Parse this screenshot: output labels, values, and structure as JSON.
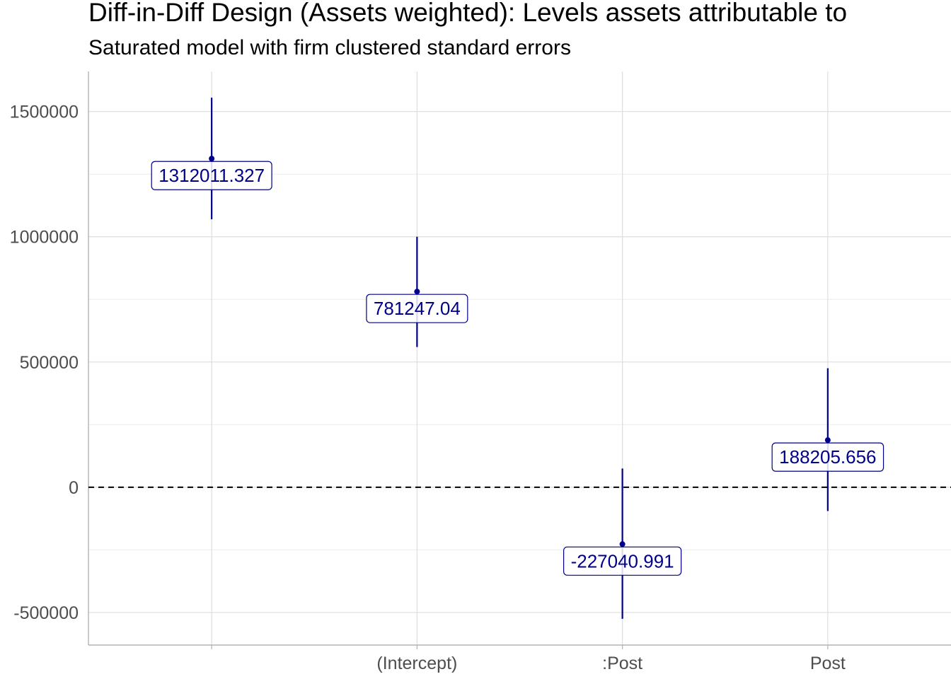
{
  "chart_data": {
    "type": "scatter",
    "title": "Diff-in-Diff Design (Assets weighted): Levels assets attributable to",
    "subtitle": "Saturated model with firm clustered standard errors",
    "xlabel": "",
    "ylabel": "",
    "categories": [
      "",
      "(Intercept)",
      ":Post",
      "Post"
    ],
    "series": [
      {
        "estimates": [
          1312011.327,
          781247.04,
          -227040.991,
          188205.656
        ],
        "ci_low": [
          1070000,
          560000,
          -525000,
          -95000
        ],
        "ci_high": [
          1555000,
          1000000,
          75000,
          475000
        ],
        "labels": [
          "1312011.327",
          "781247.04",
          "-227040.991",
          "188205.656"
        ]
      }
    ],
    "ylim": [
      -630000,
      1660000
    ],
    "yticks": [
      -500000,
      0,
      500000,
      1000000,
      1500000
    ],
    "ytick_labels": [
      "-500000",
      "0",
      "500000",
      "1000000",
      "1500000"
    ],
    "reference_line": 0,
    "grid": true,
    "colors": {
      "points": "#00008b",
      "grid": "#dedede",
      "axis": "#b3b3b3",
      "reference": "#000000",
      "tick_text": "#4d4d4d"
    }
  }
}
